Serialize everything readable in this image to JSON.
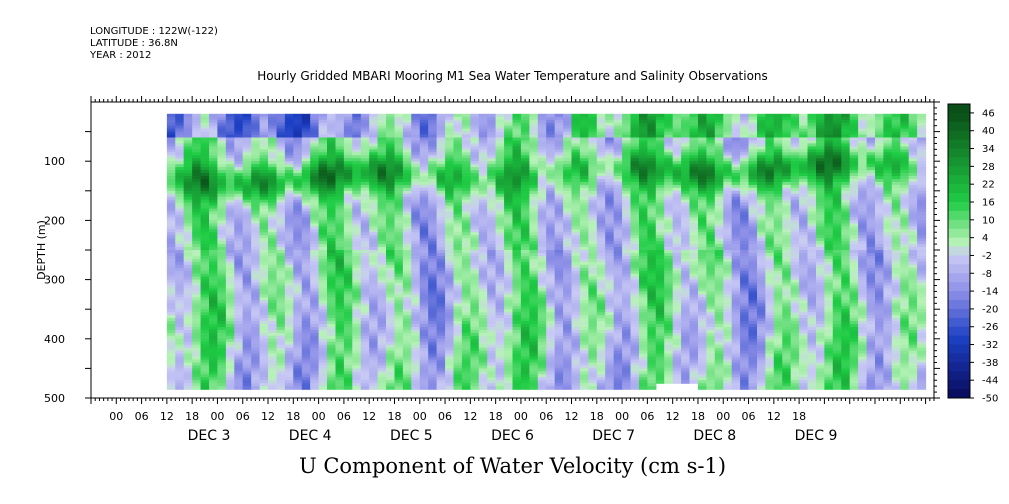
{
  "header": {
    "longitude": "LONGITUDE : 122W(-122)",
    "latitude": "LATITUDE : 36.8N",
    "year": "YEAR : 2012"
  },
  "chart_data": {
    "type": "heatmap",
    "title": "Hourly Gridded MBARI Mooring M1 Sea Water Temperature and Salinity Observations",
    "footer_title": "U Component of Water Velocity (cm s-1)",
    "ylabel": "DEPTH (m)",
    "yreversed": true,
    "ylim": [
      0,
      500
    ],
    "yticks": [
      100,
      200,
      300,
      400,
      500
    ],
    "xrange_hours": [
      -24,
      176
    ],
    "xtick_labels": [
      "00",
      "06",
      "12",
      "18",
      "00",
      "06",
      "12",
      "18",
      "00",
      "06",
      "12",
      "18",
      "00",
      "06",
      "12",
      "18",
      "00",
      "06",
      "12",
      "18",
      "00",
      "06",
      "12",
      "18",
      "00",
      "06",
      "12",
      "18"
    ],
    "day_labels": [
      "DEC 3",
      "DEC 4",
      "DEC 5",
      "DEC 6",
      "DEC 7",
      "DEC 8",
      "DEC 9"
    ],
    "colorbar_labels": [
      "46",
      "40",
      "34",
      "28",
      "22",
      "16",
      "10",
      "4",
      "-2",
      "-8",
      "-14",
      "-20",
      "-26",
      "-32",
      "-38",
      "-44",
      "-50"
    ],
    "colorbar_range": [
      -50,
      49
    ],
    "colorbar_step": 3,
    "colors": {
      "pos_dark": "#0b4f18",
      "pos_mid": "#1fcc45",
      "pos_light": "#b8f2b8",
      "neg_light": "#c9c9f5",
      "neg_mid": "#8e90e8",
      "neg_dark": "#1c3fc4",
      "neg_deep": "#080a5a"
    },
    "grid": false
  }
}
